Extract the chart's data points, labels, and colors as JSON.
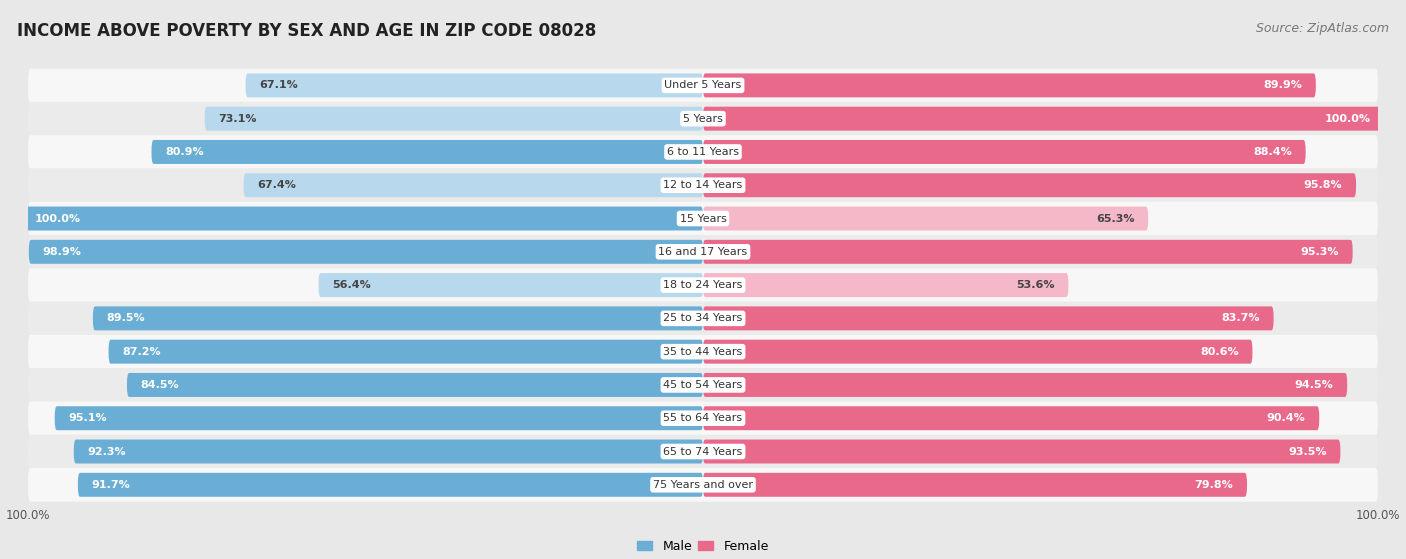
{
  "title": "INCOME ABOVE POVERTY BY SEX AND AGE IN ZIP CODE 08028",
  "source": "Source: ZipAtlas.com",
  "categories": [
    "Under 5 Years",
    "5 Years",
    "6 to 11 Years",
    "12 to 14 Years",
    "15 Years",
    "16 and 17 Years",
    "18 to 24 Years",
    "25 to 34 Years",
    "35 to 44 Years",
    "45 to 54 Years",
    "55 to 64 Years",
    "65 to 74 Years",
    "75 Years and over"
  ],
  "male": [
    67.1,
    73.1,
    80.9,
    67.4,
    100.0,
    98.9,
    56.4,
    89.5,
    87.2,
    84.5,
    95.1,
    92.3,
    91.7
  ],
  "female": [
    89.9,
    100.0,
    88.4,
    95.8,
    65.3,
    95.3,
    53.6,
    83.7,
    80.6,
    94.5,
    90.4,
    93.5,
    79.8
  ],
  "male_color_strong": "#6aaed6",
  "male_color_weak": "#b8d9ed",
  "female_color_strong": "#e8698a",
  "female_color_weak": "#f5b8c8",
  "strong_threshold": 75,
  "row_bg_odd": "#ebebeb",
  "row_bg_even": "#f7f7f7",
  "bar_bg_color": "#ffffff",
  "title_fontsize": 12,
  "source_fontsize": 9,
  "label_fontsize": 8.0,
  "category_fontsize": 8.0,
  "legend_fontsize": 9,
  "axis_label_fontsize": 8.5
}
